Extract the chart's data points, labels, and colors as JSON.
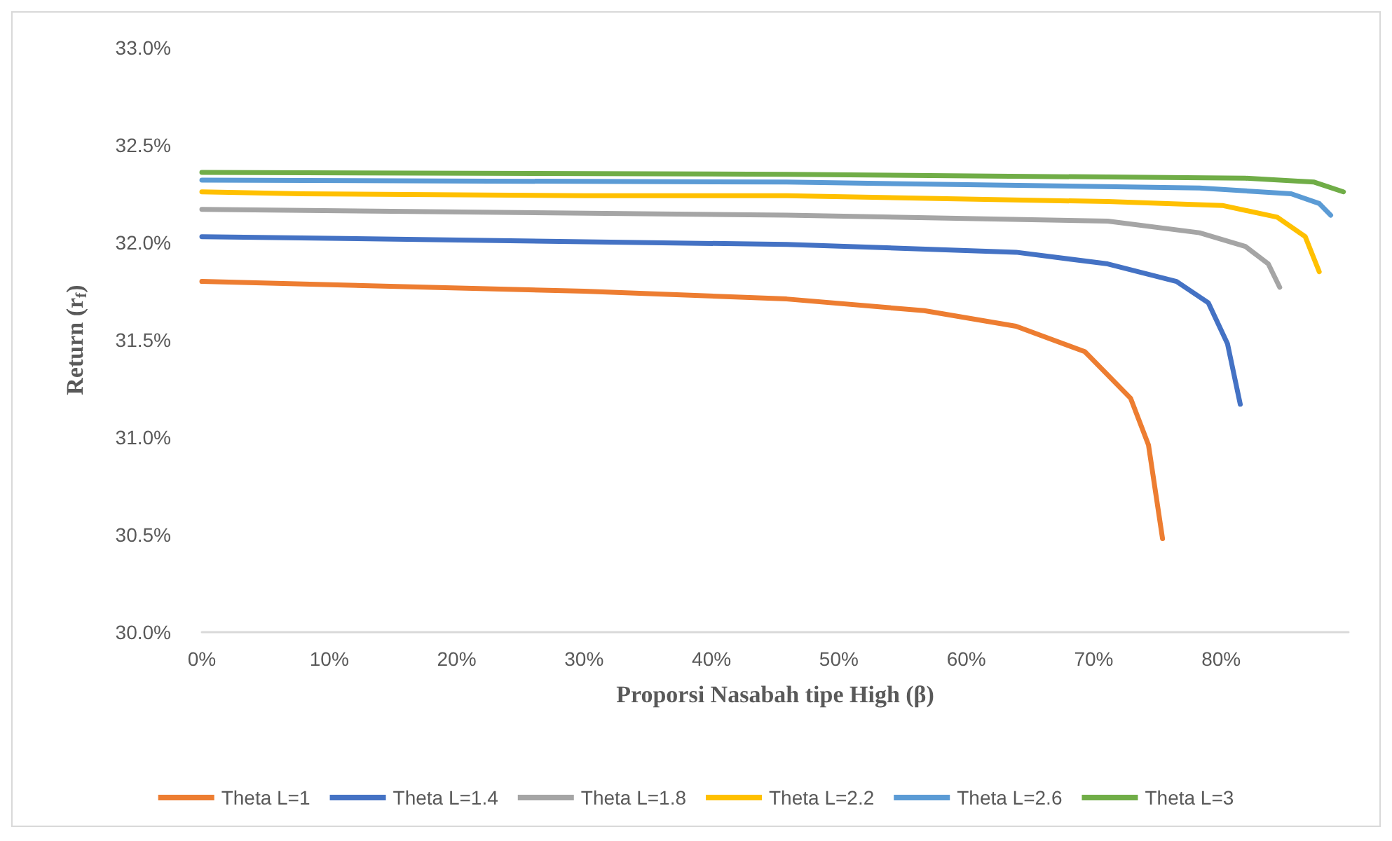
{
  "chart_data": {
    "type": "line",
    "xlabel": "Proporsi Nasabah tipe High (β)",
    "ylabel": "Return (r$_{f}$)",
    "xlim": [
      0,
      90
    ],
    "xticks": [
      {
        "value": 0,
        "label": "0%"
      },
      {
        "value": 10,
        "label": "10%"
      },
      {
        "value": 20,
        "label": "20%"
      },
      {
        "value": 30,
        "label": "30%"
      },
      {
        "value": 40,
        "label": "40%"
      },
      {
        "value": 50,
        "label": "50%"
      },
      {
        "value": 60,
        "label": "60%"
      },
      {
        "value": 70,
        "label": "70%"
      },
      {
        "value": 80,
        "label": "80%"
      }
    ],
    "ylim": [
      30,
      33
    ],
    "yticks": [
      {
        "value": 30,
        "label": "30.0%"
      },
      {
        "value": 30.5,
        "label": "30.5%"
      },
      {
        "value": 31,
        "label": "31.0%"
      },
      {
        "value": 31.5,
        "label": "31.5%"
      },
      {
        "value": 32,
        "label": "32.0%"
      },
      {
        "value": 32.5,
        "label": "32.5%"
      },
      {
        "value": 33,
        "label": "33.0%"
      }
    ],
    "grid": false,
    "legend": "bottom",
    "marker": "none",
    "line_style": "solid",
    "series": [
      {
        "name": "Theta L=1",
        "color": "#ed7d31",
        "x": [
          0,
          18,
          30,
          45.9,
          56.7,
          63.9,
          69.3,
          72.9,
          74.3,
          75.4
        ],
        "values": [
          31.8,
          31.77,
          31.75,
          31.71,
          31.65,
          31.57,
          31.44,
          31.2,
          30.96,
          30.48
        ]
      },
      {
        "name": "Theta L=1.4",
        "color": "#4472c4",
        "x": [
          0,
          45.9,
          63.9,
          71.1,
          76.5,
          79,
          80.5,
          81.5
        ],
        "values": [
          32.03,
          31.99,
          31.95,
          31.89,
          31.8,
          31.69,
          31.48,
          31.17
        ]
      },
      {
        "name": "Theta L=1.8",
        "color": "#a5a5a5",
        "x": [
          0,
          45.9,
          71.1,
          78.3,
          81.9,
          83.7,
          84.6
        ],
        "values": [
          32.17,
          32.14,
          32.11,
          32.05,
          31.98,
          31.89,
          31.77
        ]
      },
      {
        "name": "Theta L=2.2",
        "color": "#ffc000",
        "x": [
          0,
          7.8,
          30,
          45.9,
          71.1,
          80.1,
          84.4,
          86.6,
          87.7
        ],
        "values": [
          32.26,
          32.25,
          32.24,
          32.24,
          32.21,
          32.19,
          32.13,
          32.03,
          31.85
        ]
      },
      {
        "name": "Theta L=2.6",
        "color": "#5b9bd5",
        "x": [
          0,
          45.9,
          78.3,
          85.5,
          87.7,
          88.6
        ],
        "values": [
          32.32,
          32.31,
          32.28,
          32.25,
          32.2,
          32.14
        ]
      },
      {
        "name": "Theta L=3",
        "color": "#70ad47",
        "x": [
          0,
          45.9,
          81.9,
          87.3,
          89.6
        ],
        "values": [
          32.36,
          32.35,
          32.33,
          32.31,
          32.26
        ]
      }
    ]
  }
}
